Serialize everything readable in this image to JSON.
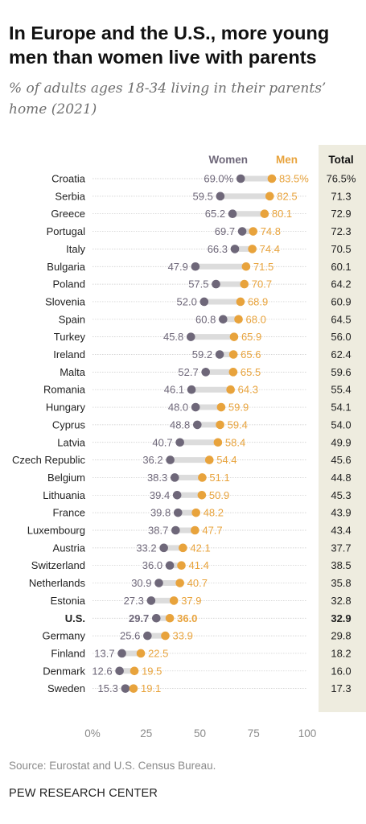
{
  "title": "In Europe and the U.S., more young men than women live with parents",
  "subtitle": "% of adults ages 18-34 living in their parents’ home (2021)",
  "source": "Source: Eurostat and U.S. Census Bureau.",
  "org": "PEW RESEARCH CENTER",
  "colors": {
    "women": "#6e6779",
    "men": "#e8a33c",
    "total_bg": "#eeecdf",
    "connector": "#dcdcdc",
    "gridline": "#c8c8c8"
  },
  "chart_data": {
    "type": "dot",
    "legend": {
      "women": "Women",
      "men": "Men",
      "total": "Total"
    },
    "xlim": [
      0,
      100
    ],
    "ticks": [
      0,
      25,
      50,
      75,
      100
    ],
    "tick_labels": [
      "0%",
      "25",
      "50",
      "75",
      "100"
    ],
    "rows": [
      {
        "label": "Croatia",
        "women": 69.0,
        "men": 83.5,
        "total": 76.5,
        "women_label": "69.0%",
        "men_label": "83.5%",
        "total_label": "76.5%"
      },
      {
        "label": "Serbia",
        "women": 59.5,
        "men": 82.5,
        "total": 71.3,
        "women_label": "59.5",
        "men_label": "82.5",
        "total_label": "71.3"
      },
      {
        "label": "Greece",
        "women": 65.2,
        "men": 80.1,
        "total": 72.9,
        "women_label": "65.2",
        "men_label": "80.1",
        "total_label": "72.9"
      },
      {
        "label": "Portugal",
        "women": 69.7,
        "men": 74.8,
        "total": 72.3,
        "women_label": "69.7",
        "men_label": "74.8",
        "total_label": "72.3"
      },
      {
        "label": "Italy",
        "women": 66.3,
        "men": 74.4,
        "total": 70.5,
        "women_label": "66.3",
        "men_label": "74.4",
        "total_label": "70.5"
      },
      {
        "label": "Bulgaria",
        "women": 47.9,
        "men": 71.5,
        "total": 60.1,
        "women_label": "47.9",
        "men_label": "71.5",
        "total_label": "60.1"
      },
      {
        "label": "Poland",
        "women": 57.5,
        "men": 70.7,
        "total": 64.2,
        "women_label": "57.5",
        "men_label": "70.7",
        "total_label": "64.2"
      },
      {
        "label": "Slovenia",
        "women": 52.0,
        "men": 68.9,
        "total": 60.9,
        "women_label": "52.0",
        "men_label": "68.9",
        "total_label": "60.9"
      },
      {
        "label": "Spain",
        "women": 60.8,
        "men": 68.0,
        "total": 64.5,
        "women_label": "60.8",
        "men_label": "68.0",
        "total_label": "64.5"
      },
      {
        "label": "Turkey",
        "women": 45.8,
        "men": 65.9,
        "total": 56.0,
        "women_label": "45.8",
        "men_label": "65.9",
        "total_label": "56.0"
      },
      {
        "label": "Ireland",
        "women": 59.2,
        "men": 65.6,
        "total": 62.4,
        "women_label": "59.2",
        "men_label": "65.6",
        "total_label": "62.4"
      },
      {
        "label": "Malta",
        "women": 52.7,
        "men": 65.5,
        "total": 59.6,
        "women_label": "52.7",
        "men_label": "65.5",
        "total_label": "59.6"
      },
      {
        "label": "Romania",
        "women": 46.1,
        "men": 64.3,
        "total": 55.4,
        "women_label": "46.1",
        "men_label": "64.3",
        "total_label": "55.4"
      },
      {
        "label": "Hungary",
        "women": 48.0,
        "men": 59.9,
        "total": 54.1,
        "women_label": "48.0",
        "men_label": "59.9",
        "total_label": "54.1"
      },
      {
        "label": "Cyprus",
        "women": 48.8,
        "men": 59.4,
        "total": 54.0,
        "women_label": "48.8",
        "men_label": "59.4",
        "total_label": "54.0"
      },
      {
        "label": "Latvia",
        "women": 40.7,
        "men": 58.4,
        "total": 49.9,
        "women_label": "40.7",
        "men_label": "58.4",
        "total_label": "49.9"
      },
      {
        "label": "Czech Republic",
        "women": 36.2,
        "men": 54.4,
        "total": 45.6,
        "women_label": "36.2",
        "men_label": "54.4",
        "total_label": "45.6"
      },
      {
        "label": "Belgium",
        "women": 38.3,
        "men": 51.1,
        "total": 44.8,
        "women_label": "38.3",
        "men_label": "51.1",
        "total_label": "44.8"
      },
      {
        "label": "Lithuania",
        "women": 39.4,
        "men": 50.9,
        "total": 45.3,
        "women_label": "39.4",
        "men_label": "50.9",
        "total_label": "45.3"
      },
      {
        "label": "France",
        "women": 39.8,
        "men": 48.2,
        "total": 43.9,
        "women_label": "39.8",
        "men_label": "48.2",
        "total_label": "43.9"
      },
      {
        "label": "Luxembourg",
        "women": 38.7,
        "men": 47.7,
        "total": 43.4,
        "women_label": "38.7",
        "men_label": "47.7",
        "total_label": "43.4"
      },
      {
        "label": "Austria",
        "women": 33.2,
        "men": 42.1,
        "total": 37.7,
        "women_label": "33.2",
        "men_label": "42.1",
        "total_label": "37.7"
      },
      {
        "label": "Switzerland",
        "women": 36.0,
        "men": 41.4,
        "total": 38.5,
        "women_label": "36.0",
        "men_label": "41.4",
        "total_label": "38.5"
      },
      {
        "label": "Netherlands",
        "women": 30.9,
        "men": 40.7,
        "total": 35.8,
        "women_label": "30.9",
        "men_label": "40.7",
        "total_label": "35.8"
      },
      {
        "label": "Estonia",
        "women": 27.3,
        "men": 37.9,
        "total": 32.8,
        "women_label": "27.3",
        "men_label": "37.9",
        "total_label": "32.8"
      },
      {
        "label": "U.S.",
        "women": 29.7,
        "men": 36.0,
        "total": 32.9,
        "women_label": "29.7",
        "men_label": "36.0",
        "total_label": "32.9",
        "highlight": true
      },
      {
        "label": "Germany",
        "women": 25.6,
        "men": 33.9,
        "total": 29.8,
        "women_label": "25.6",
        "men_label": "33.9",
        "total_label": "29.8"
      },
      {
        "label": "Finland",
        "women": 13.7,
        "men": 22.5,
        "total": 18.2,
        "women_label": "13.7",
        "men_label": "22.5",
        "total_label": "18.2"
      },
      {
        "label": "Denmark",
        "women": 12.6,
        "men": 19.5,
        "total": 16.0,
        "women_label": "12.6",
        "men_label": "19.5",
        "total_label": "16.0"
      },
      {
        "label": "Sweden",
        "women": 15.3,
        "men": 19.1,
        "total": 17.3,
        "women_label": "15.3",
        "men_label": "19.1",
        "total_label": "17.3"
      }
    ]
  }
}
